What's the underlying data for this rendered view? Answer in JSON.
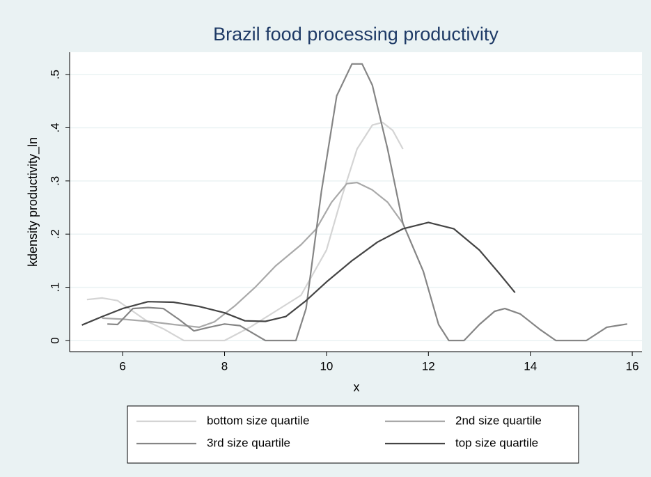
{
  "chart_data": {
    "type": "line",
    "title": "Brazil food processing productivity",
    "x_label": "x",
    "y_label": "kdensity productivity_ln",
    "xlim": [
      4.96,
      16.19
    ],
    "ylim": [
      -0.021,
      0.542
    ],
    "xticks": [
      6,
      8,
      10,
      12,
      14,
      16
    ],
    "yticks": [
      0,
      {
        "value": 0.1,
        "label": ".1"
      },
      {
        "value": 0.2,
        "label": ".2"
      },
      {
        "value": 0.3,
        "label": ".3"
      },
      {
        "value": 0.4,
        "label": ".4"
      },
      {
        "value": 0.5,
        "label": ".5"
      }
    ],
    "grid": true,
    "legend": "bottom",
    "series": [
      {
        "name": "bottom size quartile",
        "color": "#d4d4d4",
        "x": [
          5.3,
          5.6,
          5.9,
          6.2,
          6.5,
          6.8,
          7.2,
          8.0,
          8.5,
          9.0,
          9.5,
          10.0,
          10.3,
          10.6,
          10.9,
          11.1,
          11.3,
          11.5
        ],
        "values": [
          0.077,
          0.08,
          0.075,
          0.055,
          0.035,
          0.022,
          0,
          0,
          0.025,
          0.055,
          0.085,
          0.17,
          0.27,
          0.36,
          0.405,
          0.41,
          0.395,
          0.36
        ]
      },
      {
        "name": "2nd size quartile",
        "color": "#a9a9a9",
        "x": [
          5.6,
          6.0,
          6.5,
          7.0,
          7.5,
          7.8,
          8.2,
          8.6,
          9.0,
          9.5,
          9.8,
          10.1,
          10.4,
          10.6,
          10.9,
          11.2,
          11.5
        ],
        "values": [
          0.042,
          0.04,
          0.036,
          0.03,
          0.025,
          0.035,
          0.065,
          0.1,
          0.14,
          0.18,
          0.21,
          0.26,
          0.295,
          0.297,
          0.283,
          0.26,
          0.22
        ]
      },
      {
        "name": "3rd size quartile",
        "color": "#858585",
        "x": [
          5.7,
          5.9,
          6.2,
          6.5,
          6.8,
          7.1,
          7.4,
          7.7,
          8.0,
          8.3,
          8.8,
          9.4,
          9.6,
          9.9,
          10.2,
          10.5,
          10.7,
          10.9,
          11.2,
          11.5,
          11.9,
          12.2,
          12.4,
          12.7,
          13.0,
          13.3,
          13.5,
          13.8,
          14.2,
          14.5,
          15.1,
          15.5,
          15.9
        ],
        "values": [
          0.031,
          0.03,
          0.06,
          0.062,
          0.06,
          0.04,
          0.018,
          0.025,
          0.031,
          0.028,
          0,
          0,
          0.06,
          0.28,
          0.46,
          0.52,
          0.52,
          0.48,
          0.36,
          0.22,
          0.13,
          0.03,
          0,
          0,
          0.03,
          0.055,
          0.06,
          0.05,
          0.02,
          0,
          0,
          0.025,
          0.031
        ]
      },
      {
        "name": "top size quartile",
        "color": "#444444",
        "x": [
          5.2,
          5.6,
          6.0,
          6.5,
          7.0,
          7.5,
          8.0,
          8.4,
          8.8,
          9.2,
          9.6,
          10.0,
          10.5,
          11.0,
          11.5,
          12.0,
          12.5,
          13.0,
          13.4,
          13.7
        ],
        "values": [
          0.029,
          0.045,
          0.06,
          0.073,
          0.072,
          0.064,
          0.052,
          0.037,
          0.036,
          0.045,
          0.075,
          0.11,
          0.15,
          0.185,
          0.21,
          0.222,
          0.21,
          0.17,
          0.125,
          0.09
        ]
      }
    ]
  }
}
